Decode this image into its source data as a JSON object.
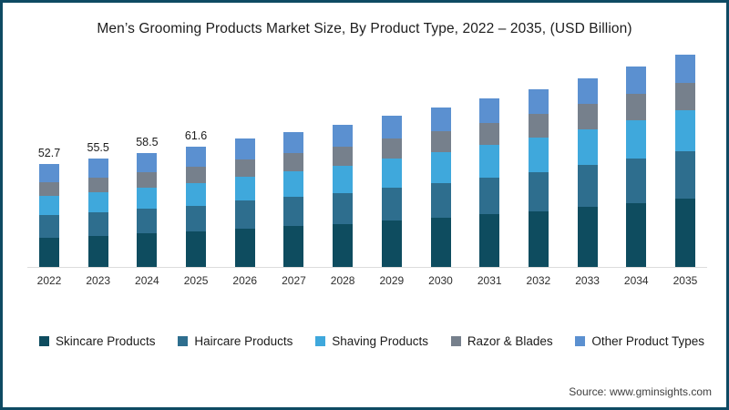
{
  "title": "Men’s Grooming Products Market Size, By Product Type, 2022 – 2035, (USD Billion)",
  "source": "Source: www.gminsights.com",
  "colors": {
    "frame_border": "#0e4a63",
    "baseline": "#dcdcdc",
    "title_text": "#1d1d1d",
    "label_text": "#1c1c1c"
  },
  "chart_data": {
    "type": "bar",
    "stacked": true,
    "title": "Men’s Grooming Products Market Size, By Product Type, 2022 – 2035, (USD Billion)",
    "xlabel": "",
    "ylabel": "USD Billion",
    "ylim": [
      0,
      110
    ],
    "grid": false,
    "legend_position": "bottom",
    "categories": [
      "2022",
      "2023",
      "2024",
      "2025",
      "2026",
      "2027",
      "2028",
      "2029",
      "2030",
      "2031",
      "2032",
      "2033",
      "2034",
      "2035"
    ],
    "series": [
      {
        "name": "Skincare Products",
        "color": "#0e4c5f",
        "values": [
          15.2,
          16.1,
          17.2,
          18.2,
          19.7,
          20.9,
          22.2,
          23.8,
          25.3,
          27.0,
          28.7,
          30.8,
          32.9,
          35.2
        ]
      },
      {
        "name": "Haircare Products",
        "color": "#2e6e8e",
        "values": [
          11.3,
          11.9,
          12.6,
          13.3,
          14.3,
          15.1,
          15.9,
          17.0,
          18.0,
          19.1,
          20.2,
          21.5,
          22.9,
          24.4
        ]
      },
      {
        "name": "Shaving Products",
        "color": "#3fa8dc",
        "values": [
          10.0,
          10.5,
          11.1,
          11.7,
          12.5,
          13.2,
          13.9,
          14.8,
          15.6,
          16.5,
          17.4,
          18.4,
          19.6,
          20.8
        ]
      },
      {
        "name": "Razor & Blades",
        "color": "#76808c",
        "values": [
          7.2,
          7.6,
          8.0,
          8.4,
          8.9,
          9.4,
          9.8,
          10.4,
          11.0,
          11.6,
          12.2,
          12.9,
          13.6,
          14.4
        ]
      },
      {
        "name": "Other Product Types",
        "color": "#5b90d0",
        "values": [
          9.0,
          9.4,
          9.6,
          10.0,
          10.6,
          10.8,
          11.3,
          11.7,
          12.0,
          12.5,
          13.0,
          13.5,
          14.0,
          14.5
        ]
      }
    ],
    "totals": [
      52.7,
      55.5,
      58.5,
      61.6,
      66.0,
      69.4,
      73.1,
      77.7,
      81.9,
      86.7,
      91.5,
      97.1,
      103.0,
      109.3
    ],
    "value_labels": [
      "52.7",
      "55.5",
      "58.5",
      "61.6",
      "",
      "",
      "",
      "",
      "",
      "",
      "",
      "",
      "",
      ""
    ]
  },
  "legend": {
    "items": [
      "Skincare Products",
      "Haircare Products",
      "Shaving Products",
      "Razor & Blades",
      "Other Product Types"
    ]
  }
}
